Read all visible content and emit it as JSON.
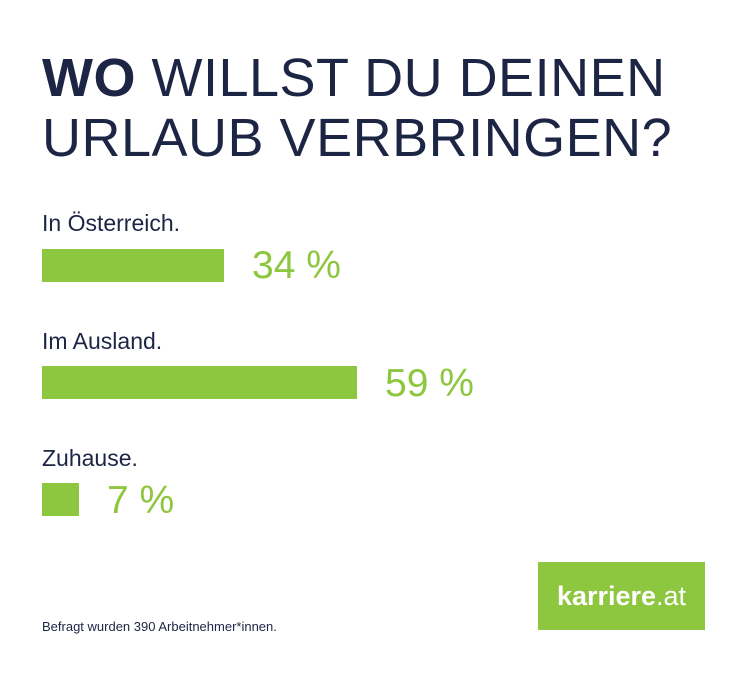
{
  "header": {
    "title_bold": "WO",
    "title_line1_rest": "WILLST DU DEINEN",
    "title_line2": "URLAUB VERBRINGEN?"
  },
  "chart_data": {
    "type": "bar",
    "orientation": "horizontal",
    "title": "WO WILLST DU DEINEN URLAUB VERBRINGEN?",
    "categories": [
      "In Österreich.",
      "Im Ausland.",
      "Zuhause."
    ],
    "values": [
      34,
      59,
      7
    ],
    "value_labels": [
      "34 %",
      "59 %",
      "7 %"
    ],
    "unit": "%",
    "xlim": [
      0,
      100
    ],
    "grid": false,
    "color": "#8dc63f"
  },
  "footnote": "Befragt wurden 390 Arbeitnehmer*innen.",
  "logo": {
    "brand": "karriere",
    "tld": ".at"
  },
  "colors": {
    "accent": "#8dc63f",
    "navy": "#1c2544"
  }
}
